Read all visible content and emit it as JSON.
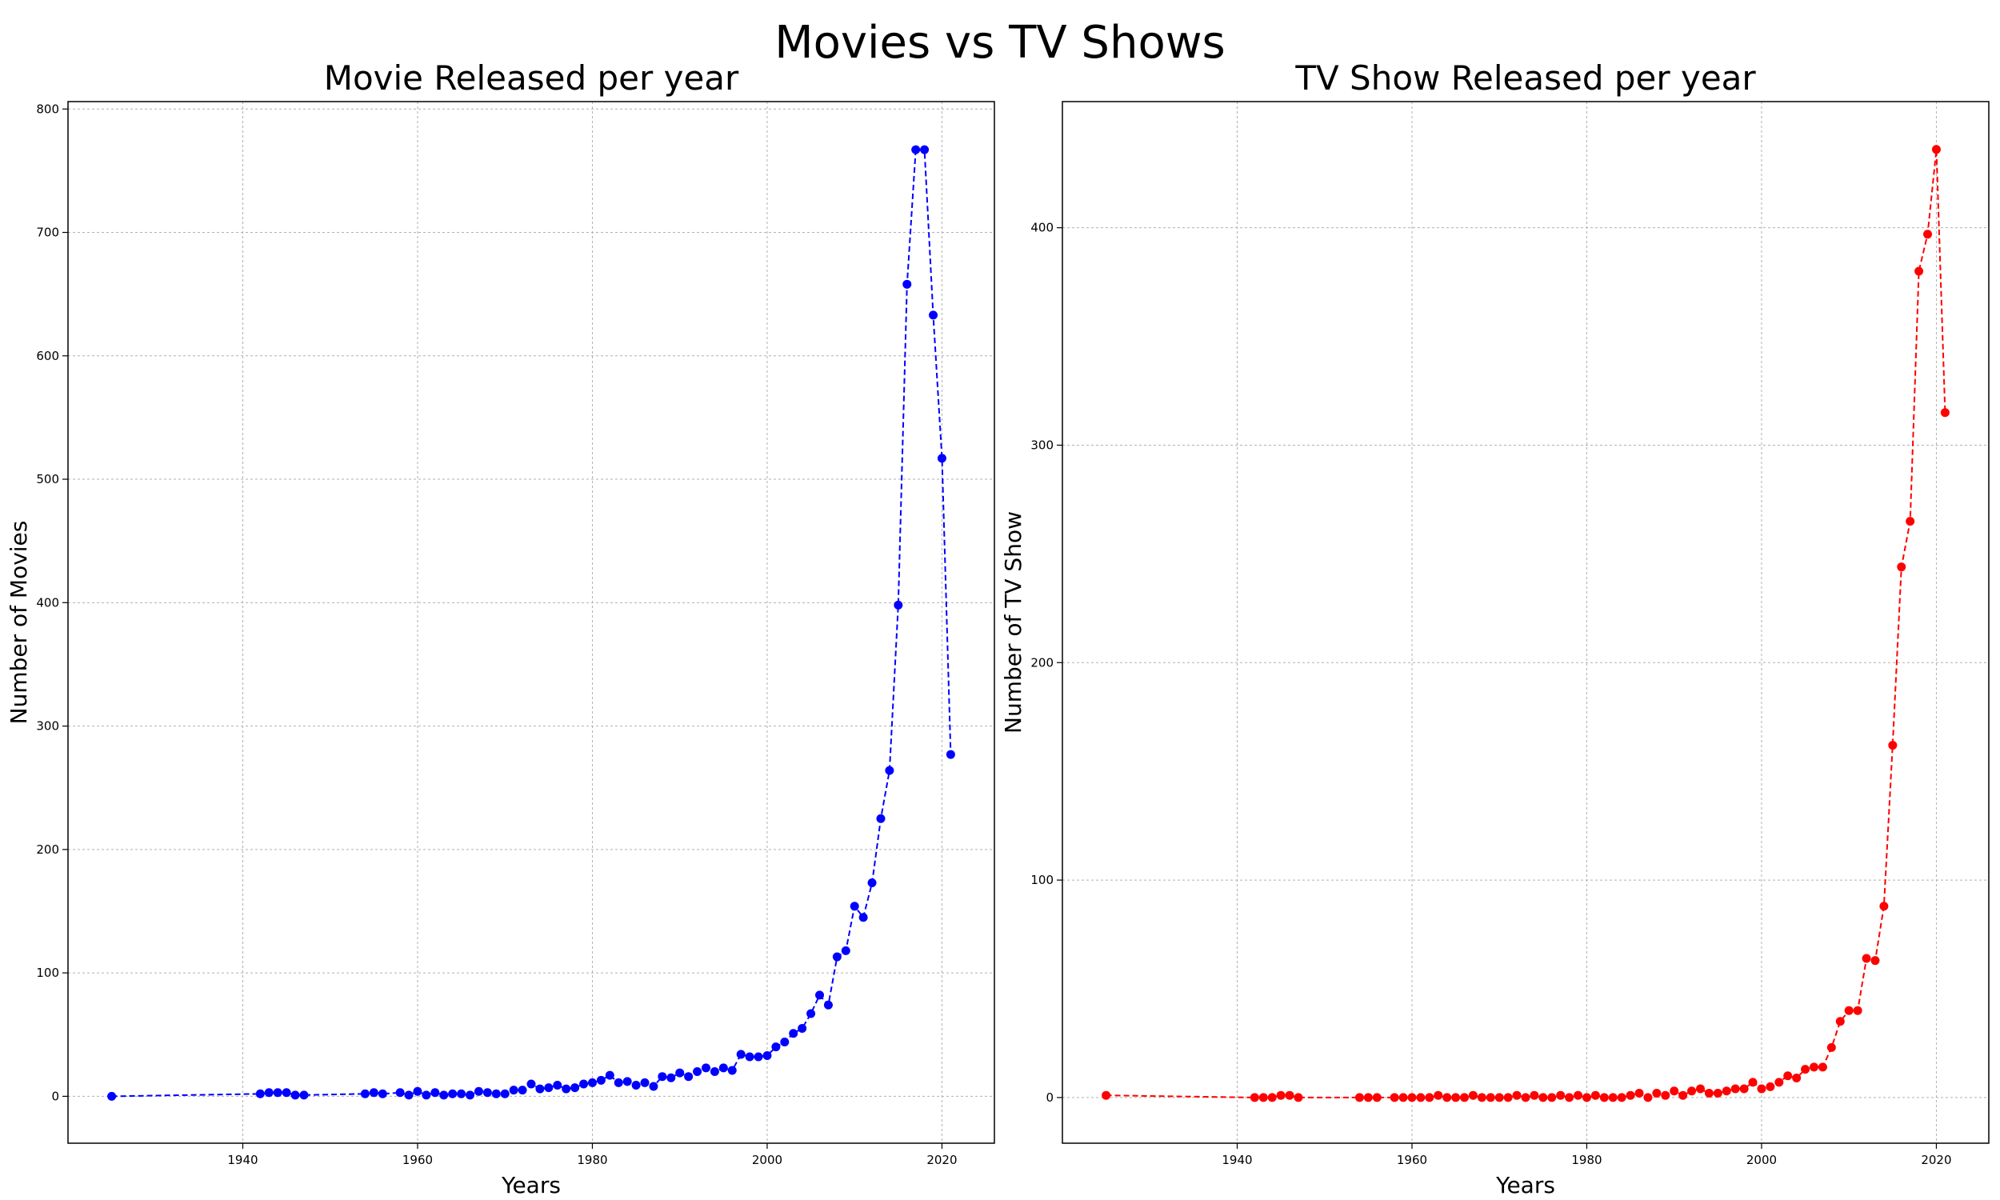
{
  "figure": {
    "title": "Movies vs TV Shows"
  },
  "colors": {
    "movies": "#0000ff",
    "tv_shows": "#ff0000",
    "grid": "#b0b0b0",
    "frame": "#000000"
  },
  "chart_data": [
    {
      "type": "line",
      "line_style": "dashed",
      "marker": "circle",
      "grid": true,
      "title": "Movie Released per year",
      "xlabel": "Years",
      "ylabel": "Number of Movies",
      "xlim": [
        1920,
        2026
      ],
      "ylim": [
        -38,
        806
      ],
      "x_ticks": [
        1940,
        1960,
        1980,
        2000,
        2020
      ],
      "y_ticks": [
        0,
        100,
        200,
        300,
        400,
        500,
        600,
        700,
        800
      ],
      "series": [
        {
          "color": "#0000ff",
          "x": [
            1925,
            1942,
            1943,
            1944,
            1945,
            1946,
            1947,
            1954,
            1955,
            1956,
            1958,
            1959,
            1960,
            1961,
            1962,
            1963,
            1964,
            1965,
            1966,
            1967,
            1968,
            1969,
            1970,
            1971,
            1972,
            1973,
            1974,
            1975,
            1976,
            1977,
            1978,
            1979,
            1980,
            1981,
            1982,
            1983,
            1984,
            1985,
            1986,
            1987,
            1988,
            1989,
            1990,
            1991,
            1992,
            1993,
            1994,
            1995,
            1996,
            1997,
            1998,
            1999,
            2000,
            2001,
            2002,
            2003,
            2004,
            2005,
            2006,
            2007,
            2008,
            2009,
            2010,
            2011,
            2012,
            2013,
            2014,
            2015,
            2016,
            2017,
            2018,
            2019,
            2020,
            2021
          ],
          "y": [
            0,
            2,
            3,
            3,
            3,
            1,
            1,
            2,
            3,
            2,
            3,
            1,
            4,
            1,
            3,
            1,
            2,
            2,
            1,
            4,
            3,
            2,
            2,
            5,
            5,
            10,
            6,
            7,
            9,
            6,
            7,
            10,
            11,
            13,
            17,
            11,
            12,
            9,
            11,
            8,
            16,
            15,
            19,
            16,
            20,
            23,
            20,
            23,
            21,
            34,
            32,
            32,
            33,
            40,
            44,
            51,
            55,
            67,
            82,
            74,
            113,
            118,
            154,
            145,
            173,
            225,
            264,
            398,
            658,
            767,
            767,
            633,
            517,
            277
          ]
        }
      ]
    },
    {
      "type": "line",
      "line_style": "dashed",
      "marker": "circle",
      "grid": true,
      "title": "TV Show Released per year",
      "xlabel": "Years",
      "ylabel": "Number of TV Show",
      "xlim": [
        1920,
        2026
      ],
      "ylim": [
        -21,
        458
      ],
      "x_ticks": [
        1940,
        1960,
        1980,
        2000,
        2020
      ],
      "y_ticks": [
        0,
        100,
        200,
        300,
        400
      ],
      "series": [
        {
          "color": "#ff0000",
          "x": [
            1925,
            1942,
            1943,
            1944,
            1945,
            1946,
            1947,
            1954,
            1955,
            1956,
            1958,
            1959,
            1960,
            1961,
            1962,
            1963,
            1964,
            1965,
            1966,
            1967,
            1968,
            1969,
            1970,
            1971,
            1972,
            1973,
            1974,
            1975,
            1976,
            1977,
            1978,
            1979,
            1980,
            1981,
            1982,
            1983,
            1984,
            1985,
            1986,
            1987,
            1988,
            1989,
            1990,
            1991,
            1992,
            1993,
            1994,
            1995,
            1996,
            1997,
            1998,
            1999,
            2000,
            2001,
            2002,
            2003,
            2004,
            2005,
            2006,
            2007,
            2008,
            2009,
            2010,
            2011,
            2012,
            2013,
            2014,
            2015,
            2016,
            2017,
            2018,
            2019,
            2020,
            2021
          ],
          "y": [
            1,
            0,
            0,
            0,
            1,
            1,
            0,
            0,
            0,
            0,
            0,
            0,
            0,
            0,
            0,
            1,
            0,
            0,
            0,
            1,
            0,
            0,
            0,
            0,
            1,
            0,
            1,
            0,
            0,
            1,
            0,
            1,
            0,
            1,
            0,
            0,
            0,
            1,
            2,
            0,
            2,
            1,
            3,
            1,
            3,
            4,
            2,
            2,
            3,
            4,
            4,
            7,
            4,
            5,
            7,
            10,
            9,
            13,
            14,
            14,
            23,
            35,
            40,
            40,
            64,
            63,
            88,
            162,
            244,
            265,
            380,
            397,
            436,
            315
          ]
        }
      ]
    }
  ]
}
